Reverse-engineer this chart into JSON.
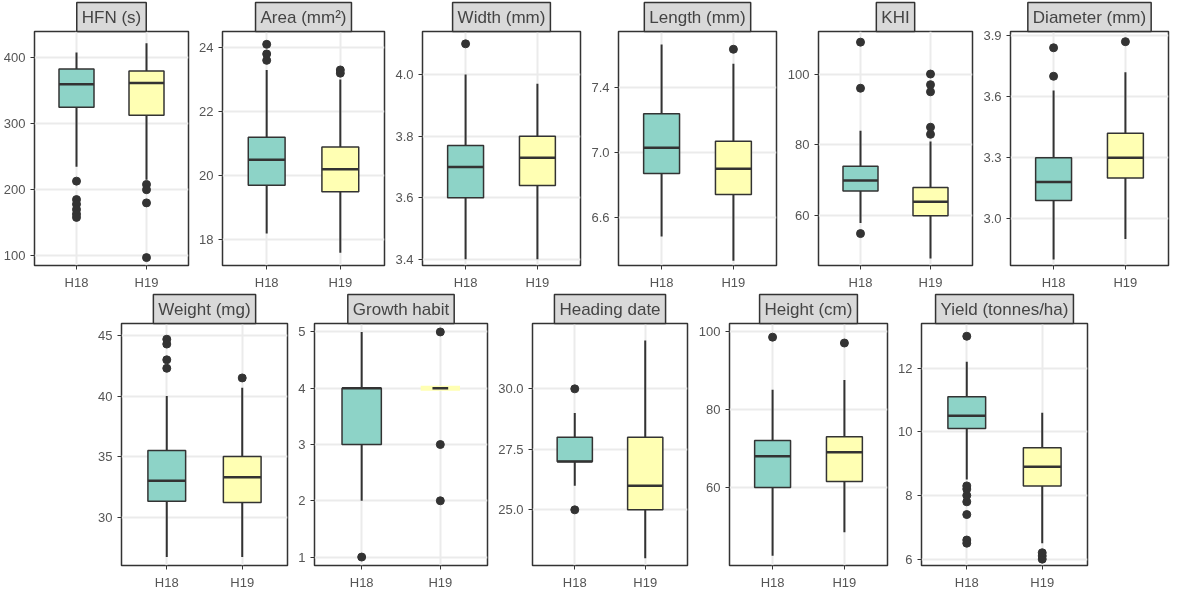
{
  "chart_data": [
    {
      "type": "box",
      "title": "HFN (s)",
      "categories": [
        "H18",
        "H19"
      ],
      "colors": [
        "#8dd3c7",
        "#ffffb3"
      ],
      "ylim": [
        85,
        440
      ],
      "yticks": [
        100,
        200,
        300,
        400
      ],
      "grid": true,
      "boxes": [
        {
          "low": 235,
          "q1": 325,
          "median": 360,
          "q3": 383,
          "high": 408,
          "outliers": [
            213,
            185,
            178,
            170,
            163,
            158
          ]
        },
        {
          "low": 215,
          "q1": 313,
          "median": 362,
          "q3": 380,
          "high": 422,
          "outliers": [
            208,
            200,
            180,
            97
          ]
        }
      ]
    },
    {
      "type": "box",
      "title": "Area (mm²)",
      "categories": [
        "H18",
        "H19"
      ],
      "colors": [
        "#8dd3c7",
        "#ffffb3"
      ],
      "ylim": [
        17.2,
        24.5
      ],
      "yticks": [
        18,
        20,
        22,
        24
      ],
      "grid": true,
      "boxes": [
        {
          "low": 18.2,
          "q1": 19.7,
          "median": 20.5,
          "q3": 21.2,
          "high": 23.3,
          "outliers": [
            23.6,
            23.8,
            24.1
          ]
        },
        {
          "low": 17.6,
          "q1": 19.5,
          "median": 20.2,
          "q3": 20.9,
          "high": 23.0,
          "outliers": [
            23.2,
            23.3
          ]
        }
      ]
    },
    {
      "type": "box",
      "title": "Width (mm)",
      "categories": [
        "H18",
        "H19"
      ],
      "colors": [
        "#8dd3c7",
        "#ffffb3"
      ],
      "ylim": [
        3.38,
        4.14
      ],
      "yticks": [
        {
          "value": 3.4,
          "label": "3.4"
        },
        {
          "value": 3.6,
          "label": "3.6"
        },
        {
          "value": 3.8,
          "label": "3.8"
        },
        {
          "value": 4.0,
          "label": "4.0"
        }
      ],
      "grid": true,
      "boxes": [
        {
          "low": 3.4,
          "q1": 3.6,
          "median": 3.7,
          "q3": 3.77,
          "high": 4.0,
          "outliers": [
            4.1
          ]
        },
        {
          "low": 3.4,
          "q1": 3.64,
          "median": 3.73,
          "q3": 3.8,
          "high": 3.97
        }
      ]
    },
    {
      "type": "box",
      "title": "Length (mm)",
      "categories": [
        "H18",
        "H19"
      ],
      "colors": [
        "#8dd3c7",
        "#ffffb3"
      ],
      "ylim": [
        6.3,
        7.75
      ],
      "yticks": [
        {
          "value": 6.6,
          "label": "6.6"
        },
        {
          "value": 7.0,
          "label": "7.0"
        },
        {
          "value": 7.4,
          "label": "7.4"
        }
      ],
      "grid": true,
      "boxes": [
        {
          "low": 6.48,
          "q1": 6.87,
          "median": 7.03,
          "q3": 7.24,
          "high": 7.67
        },
        {
          "low": 6.33,
          "q1": 6.74,
          "median": 6.9,
          "q3": 7.07,
          "high": 7.55,
          "outliers": [
            7.64
          ]
        }
      ]
    },
    {
      "type": "box",
      "title": "KHI",
      "categories": [
        "H18",
        "H19"
      ],
      "colors": [
        "#8dd3c7",
        "#ffffb3"
      ],
      "ylim": [
        46,
        112
      ],
      "yticks": [
        60,
        80,
        100
      ],
      "grid": true,
      "boxes": [
        {
          "low": 58,
          "q1": 67,
          "median": 70,
          "q3": 74,
          "high": 84,
          "outliers": [
            55,
            96,
            109
          ]
        },
        {
          "low": 48,
          "q1": 60,
          "median": 64,
          "q3": 68,
          "high": 81,
          "outliers": [
            83,
            85,
            95,
            97,
            100
          ]
        }
      ]
    },
    {
      "type": "box",
      "title": "Diameter (mm)",
      "categories": [
        "H18",
        "H19"
      ],
      "colors": [
        "#8dd3c7",
        "#ffffb3"
      ],
      "ylim": [
        2.77,
        3.92
      ],
      "yticks": [
        {
          "value": 3.0,
          "label": "3.0"
        },
        {
          "value": 3.3,
          "label": "3.3"
        },
        {
          "value": 3.6,
          "label": "3.6"
        },
        {
          "value": 3.9,
          "label": "3.9"
        }
      ],
      "grid": true,
      "boxes": [
        {
          "low": 2.8,
          "q1": 3.09,
          "median": 3.18,
          "q3": 3.3,
          "high": 3.63,
          "outliers": [
            3.7,
            3.84
          ]
        },
        {
          "low": 2.9,
          "q1": 3.2,
          "median": 3.3,
          "q3": 3.42,
          "high": 3.72,
          "outliers": [
            3.87
          ]
        }
      ]
    },
    {
      "type": "box",
      "title": "Weight (mg)",
      "categories": [
        "H18",
        "H19"
      ],
      "colors": [
        "#8dd3c7",
        "#ffffb3"
      ],
      "ylim": [
        26,
        46
      ],
      "yticks": [
        30,
        35,
        40,
        45
      ],
      "grid": true,
      "boxes": [
        {
          "low": 26.7,
          "q1": 31.3,
          "median": 33,
          "q3": 35.5,
          "high": 40,
          "outliers": [
            42.3,
            43,
            44.3,
            44.7
          ]
        },
        {
          "low": 26.7,
          "q1": 31.2,
          "median": 33.3,
          "q3": 35,
          "high": 40.7,
          "outliers": [
            41.5
          ]
        }
      ]
    },
    {
      "type": "box",
      "title": "Growth habit",
      "categories": [
        "H18",
        "H19"
      ],
      "colors": [
        "#8dd3c7",
        "#ffffb3"
      ],
      "ylim": [
        0.85,
        5.15
      ],
      "yticks": [
        1,
        2,
        3,
        4,
        5
      ],
      "grid": true,
      "boxes": [
        {
          "low": 2,
          "q1": 3,
          "median": 4,
          "q3": 4,
          "high": 5,
          "outliers": [
            1
          ]
        },
        {
          "low": 4,
          "q1": 4,
          "median": 4,
          "q3": 4,
          "high": 4,
          "outliers": [
            2,
            3,
            5
          ]
        }
      ]
    },
    {
      "type": "box",
      "title": "Heading date",
      "categories": [
        "H18",
        "H19"
      ],
      "colors": [
        "#8dd3c7",
        "#ffffb3"
      ],
      "ylim": [
        22.7,
        32.7
      ],
      "yticks": [
        {
          "value": 25,
          "label": "25.0"
        },
        {
          "value": 27.5,
          "label": "27.5"
        },
        {
          "value": 30,
          "label": "30.0"
        }
      ],
      "grid": true,
      "boxes": [
        {
          "low": 26,
          "q1": 27,
          "median": 27,
          "q3": 28,
          "high": 29,
          "outliers": [
            25,
            30
          ]
        },
        {
          "low": 23,
          "q1": 25,
          "median": 26,
          "q3": 28,
          "high": 32
        }
      ]
    },
    {
      "type": "box",
      "title": "Height (cm)",
      "categories": [
        "H18",
        "H19"
      ],
      "colors": [
        "#8dd3c7",
        "#ffffb3"
      ],
      "ylim": [
        40,
        102
      ],
      "yticks": [
        60,
        80,
        100
      ],
      "grid": true,
      "boxes": [
        {
          "low": 42.5,
          "q1": 60,
          "median": 68,
          "q3": 72,
          "high": 85,
          "outliers": [
            98.5
          ]
        },
        {
          "low": 48.5,
          "q1": 61.5,
          "median": 69,
          "q3": 73,
          "high": 87.5,
          "outliers": [
            97
          ]
        }
      ]
    },
    {
      "type": "box",
      "title": "Yield (tonnes/ha)",
      "categories": [
        "H18",
        "H19"
      ],
      "colors": [
        "#8dd3c7",
        "#ffffb3"
      ],
      "ylim": [
        5.8,
        13.4
      ],
      "yticks": [
        6,
        8,
        10,
        12
      ],
      "grid": true,
      "boxes": [
        {
          "low": 8.5,
          "q1": 10.1,
          "median": 10.5,
          "q3": 11.1,
          "high": 12.2,
          "outliers": [
            6.5,
            6.6,
            7.4,
            7.8,
            8.0,
            8.2,
            8.3,
            13.0
          ]
        },
        {
          "low": 6.5,
          "q1": 8.3,
          "median": 8.9,
          "q3": 9.5,
          "high": 10.6,
          "outliers": [
            6.0,
            6.1,
            6.2
          ]
        }
      ]
    }
  ]
}
